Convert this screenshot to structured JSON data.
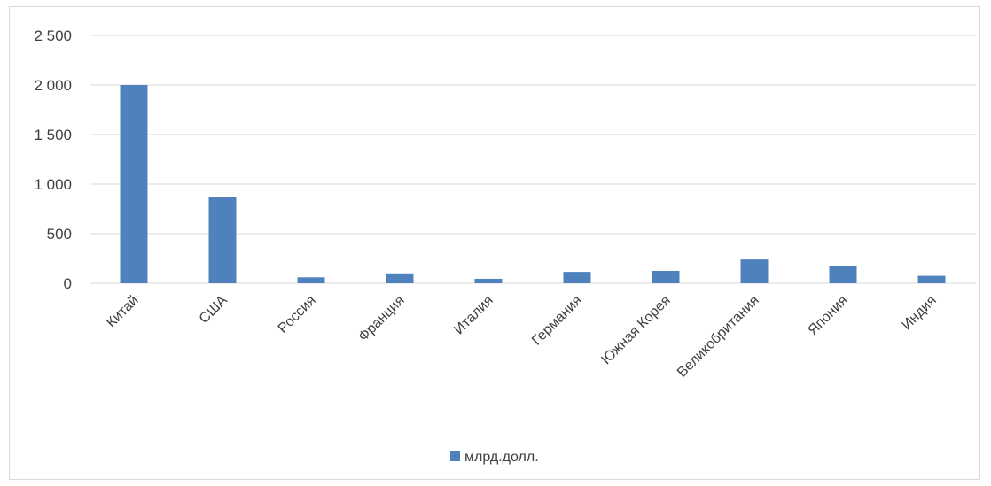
{
  "chart_data": {
    "type": "bar",
    "categories": [
      "Китай",
      "США",
      "Россия",
      "Франция",
      "Италия",
      "Германия",
      "Южная Корея",
      "Великобритания",
      "Япония",
      "Индия"
    ],
    "series": [
      {
        "name": "млрд.долл.",
        "values": [
          2000,
          870,
          60,
          100,
          45,
          115,
          125,
          240,
          170,
          75
        ]
      }
    ],
    "ylim": [
      0,
      2500
    ],
    "yticks": [
      0,
      500,
      1000,
      1500,
      2000,
      2500
    ],
    "ytick_labels": [
      "0",
      "500",
      "1 000",
      "1 500",
      "2 000",
      "2 500"
    ],
    "grid": true,
    "legend_position": "bottom",
    "colors": {
      "bar": "#4f81bd",
      "grid": "#d9d9d9",
      "text": "#404040"
    }
  }
}
